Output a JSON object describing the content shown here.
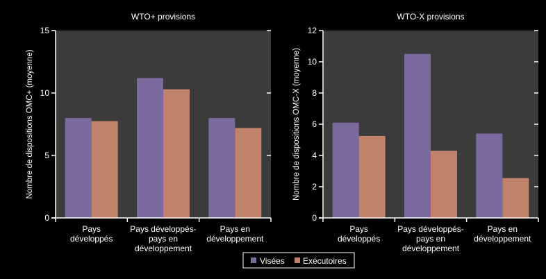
{
  "colors": {
    "background": "#000000",
    "plot_bg": "#3b3b3b",
    "axis": "#ffffff",
    "legend_bg": "#000000",
    "legend_border": "#ffffff"
  },
  "legend": {
    "placement": "bottom-center",
    "entries": [
      "Visées",
      "Exécutoires"
    ]
  },
  "chart_data": [
    {
      "type": "bar",
      "title": "WTO+ provisions",
      "ylabel": "Nombre de dispositions OMC+ (moyenne)",
      "xlabel": "",
      "ylim": [
        0,
        15
      ],
      "yticks": [
        0,
        5,
        10,
        15
      ],
      "grid": false,
      "categories": [
        [
          "Pays",
          "développés"
        ],
        [
          "Pays développés-",
          "pays en",
          "développement"
        ],
        [
          "Pays en",
          "développement"
        ]
      ],
      "series": [
        {
          "name": "Visées",
          "color": "#7b6a9e",
          "values": [
            8.0,
            11.2,
            8.0
          ]
        },
        {
          "name": "Exécutoires",
          "color": "#c0826a",
          "values": [
            7.75,
            10.3,
            7.2
          ]
        }
      ]
    },
    {
      "type": "bar",
      "title": "WTO-X provisions",
      "ylabel": "Nombre de dispositions OMC-X (moyenne)",
      "xlabel": "",
      "ylim": [
        0,
        12
      ],
      "yticks": [
        0,
        2,
        4,
        6,
        8,
        10,
        12
      ],
      "grid": false,
      "categories": [
        [
          "Pays",
          "développés"
        ],
        [
          "Pays développés-",
          "pays en",
          "développement"
        ],
        [
          "Pays en",
          "développement"
        ]
      ],
      "series": [
        {
          "name": "Visées",
          "color": "#7b6a9e",
          "values": [
            6.1,
            10.5,
            5.4
          ]
        },
        {
          "name": "Exécutoires",
          "color": "#c0826a",
          "values": [
            5.25,
            4.3,
            2.55
          ]
        }
      ]
    }
  ]
}
